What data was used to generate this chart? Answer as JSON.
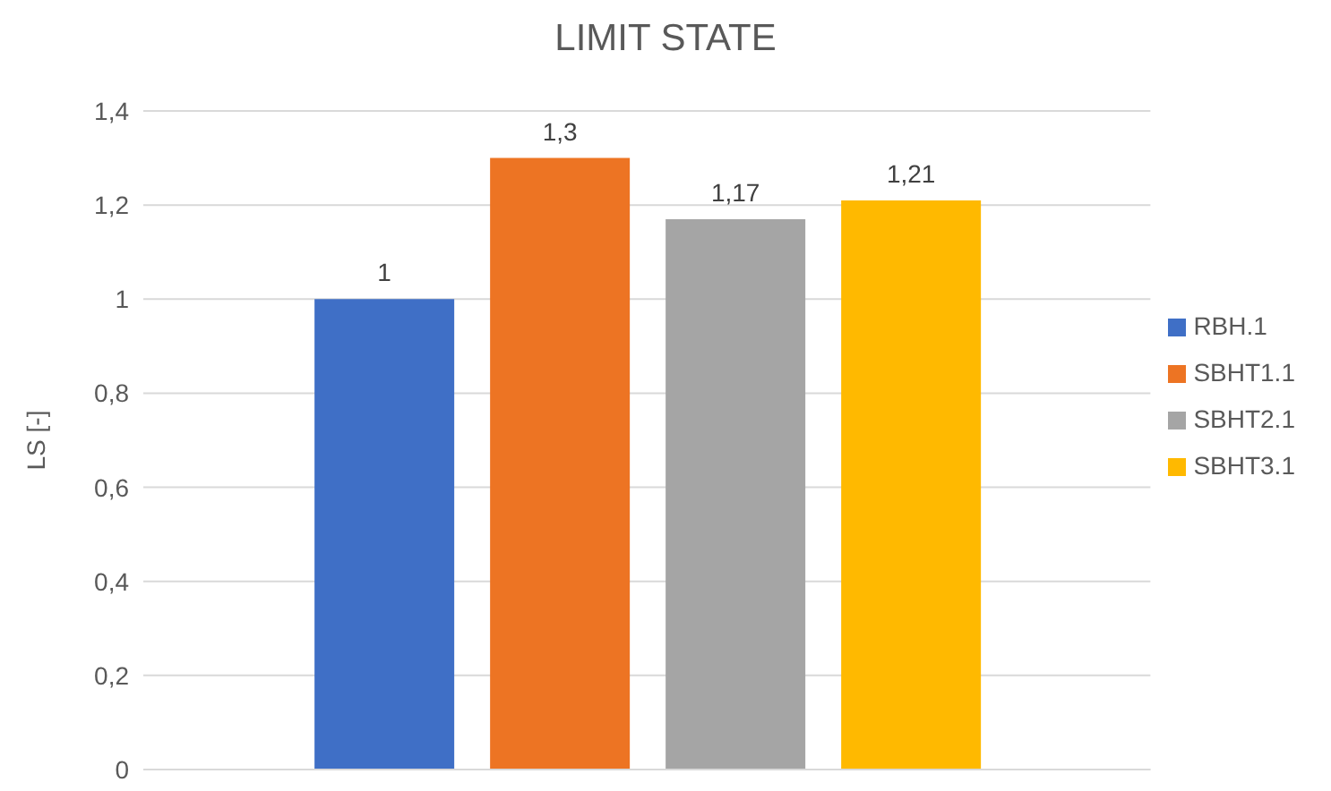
{
  "chart_data": {
    "type": "bar",
    "title": "LIMIT STATE",
    "ylabel": "LS [-]",
    "categories": [
      null
    ],
    "series": [
      {
        "name": "RBH.1",
        "color": "#3f6fc6",
        "values": [
          1
        ],
        "value_labels": [
          "1"
        ]
      },
      {
        "name": "SBHT1.1",
        "color": "#ed7423",
        "values": [
          1.3
        ],
        "value_labels": [
          "1,3"
        ]
      },
      {
        "name": "SBHT2.1",
        "color": "#a5a5a5",
        "values": [
          1.17
        ],
        "value_labels": [
          "1,17"
        ]
      },
      {
        "name": "SBHT3.1",
        "color": "#ffb900",
        "values": [
          1.21
        ],
        "value_labels": [
          "1,21"
        ]
      }
    ],
    "ylim": [
      0,
      1.4
    ],
    "yticks": [
      {
        "value": 0,
        "label": "0"
      },
      {
        "value": 0.2,
        "label": "0,2"
      },
      {
        "value": 0.4,
        "label": "0,4"
      },
      {
        "value": 0.6,
        "label": "0,6"
      },
      {
        "value": 0.8,
        "label": "0,8"
      },
      {
        "value": 1,
        "label": "1"
      },
      {
        "value": 1.2,
        "label": "1,2"
      },
      {
        "value": 1.4,
        "label": "1,4"
      }
    ],
    "grid": "y",
    "legend": "right"
  }
}
